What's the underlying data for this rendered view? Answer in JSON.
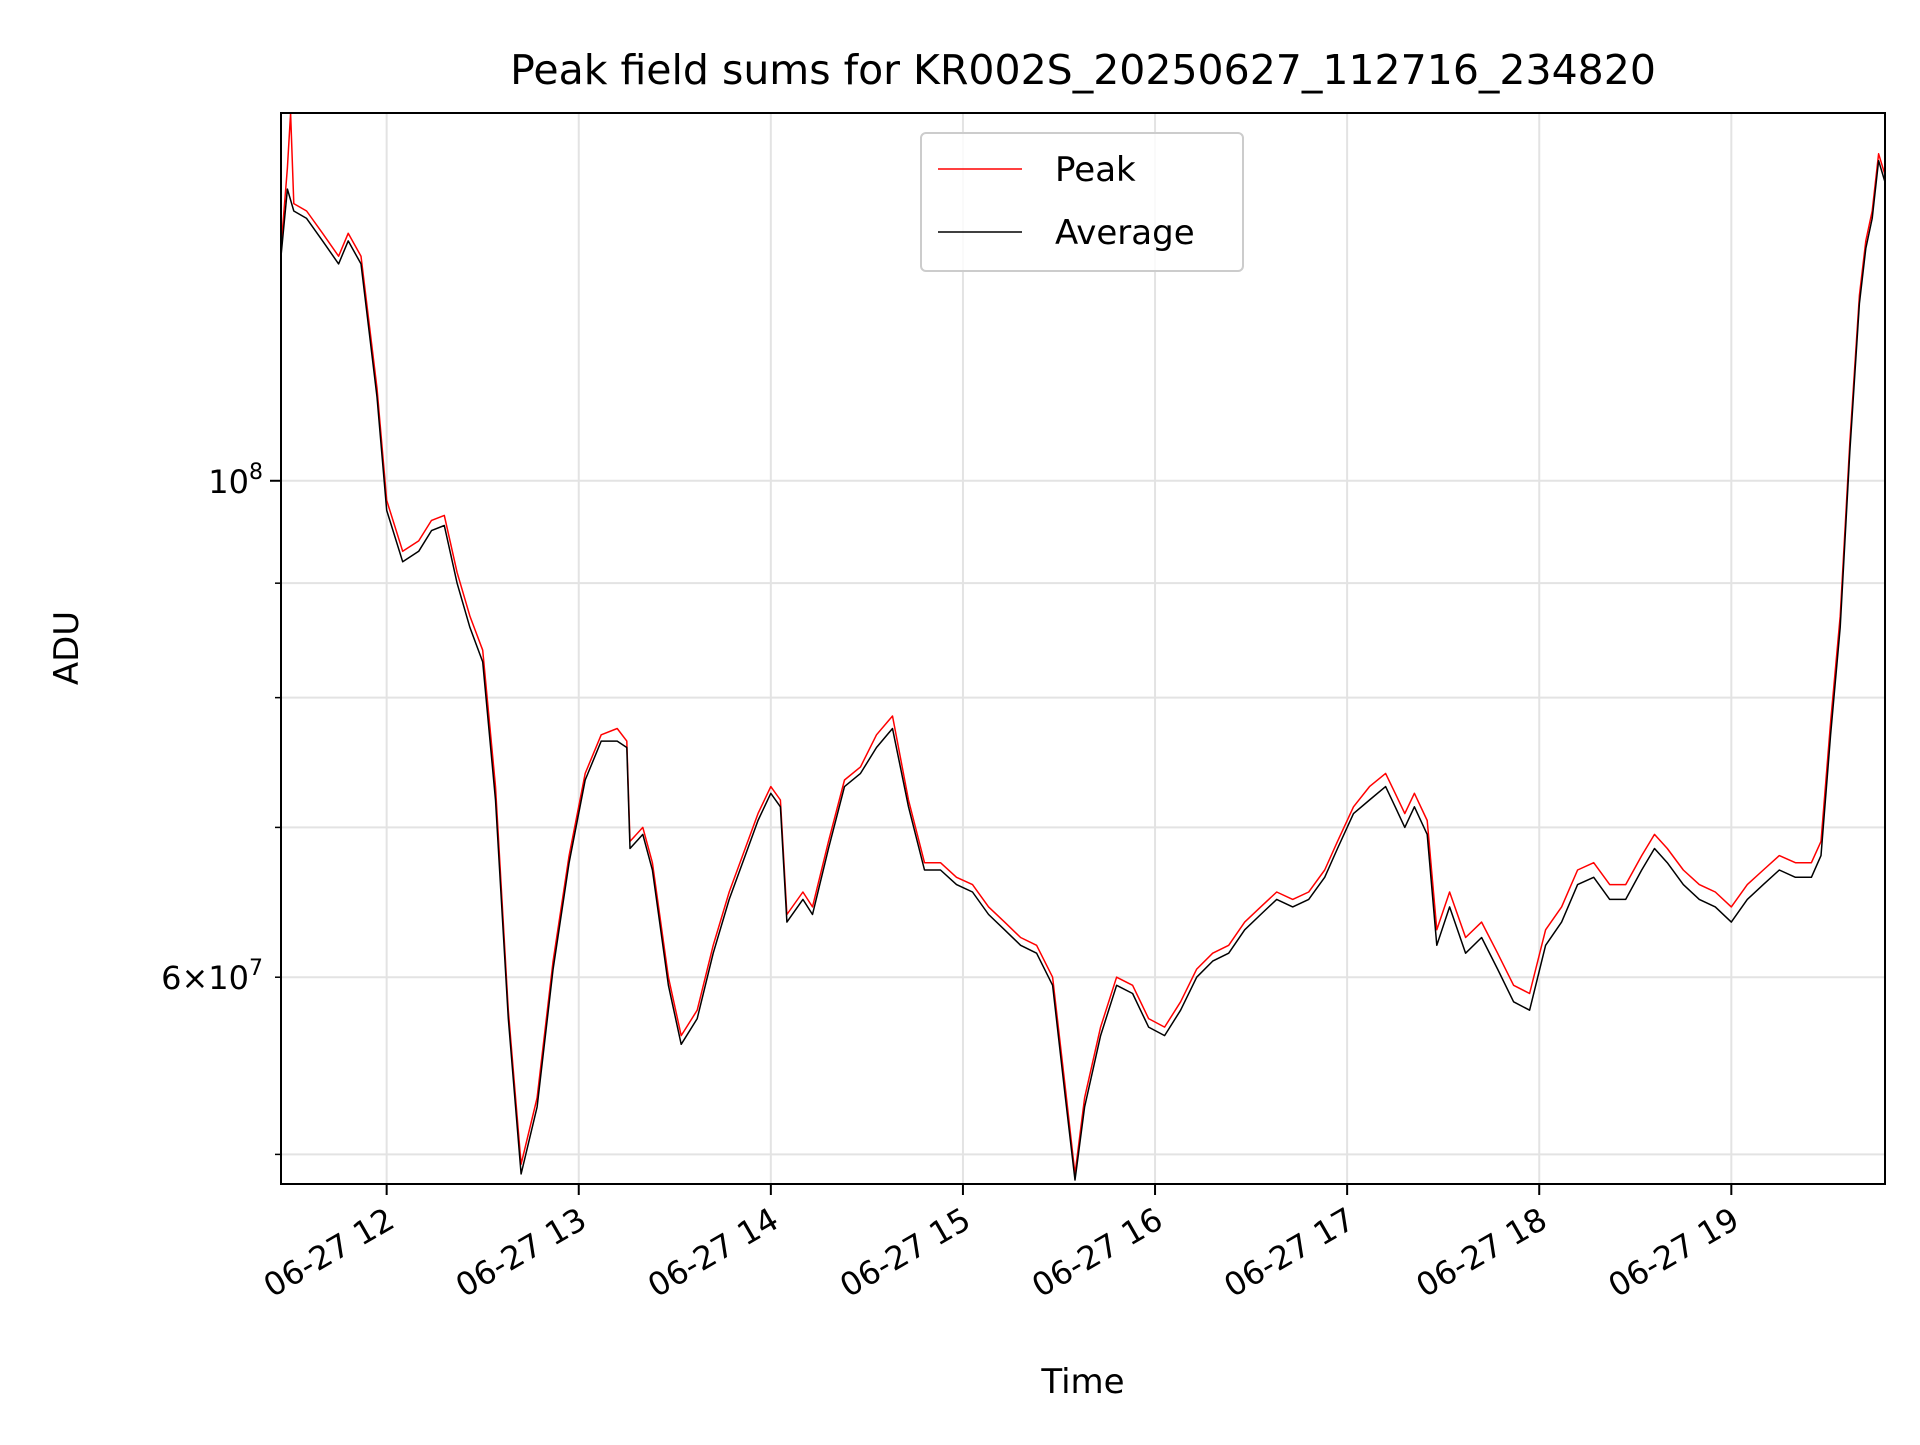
{
  "chart_data": {
    "type": "line",
    "title": "Peak field sums for KR002S_20250627_112716_234820",
    "xlabel": "Time",
    "ylabel": "ADU",
    "x_axis": {
      "kind": "time",
      "range": [
        "2025-06-27 11:27",
        "2025-06-27 19:48"
      ],
      "ticks": [
        "2025-06-27 12:00",
        "2025-06-27 13:00",
        "2025-06-27 14:00",
        "2025-06-27 15:00",
        "2025-06-27 16:00",
        "2025-06-27 17:00",
        "2025-06-27 18:00",
        "2025-06-27 19:00"
      ],
      "tick_labels": [
        "06-27 12",
        "06-27 13",
        "06-27 14",
        "06-27 15",
        "06-27 16",
        "06-27 17",
        "06-27 18",
        "06-27 19"
      ],
      "tick_label_rotation": 30
    },
    "y_axis": {
      "scale": "log",
      "range": [
        48500000,
        146000000
      ],
      "major_ticks": [
        100000000
      ],
      "major_tick_labels": [
        "10^8"
      ],
      "minor_ticks": [
        50000000,
        60000000,
        70000000,
        80000000,
        90000000
      ],
      "minor_tick_labels": [
        "",
        "6×10^7",
        "",
        "",
        ""
      ]
    },
    "grid": true,
    "legend": {
      "position": "top-center",
      "entries": [
        "Peak",
        "Average"
      ]
    },
    "series": [
      {
        "name": "Peak",
        "color": "#ff0000",
        "points": [
          [
            "2025-06-27 11:27",
            127000000
          ],
          [
            "2025-06-27 11:29",
            138000000
          ],
          [
            "2025-06-27 11:30",
            146000000
          ],
          [
            "2025-06-27 11:31",
            133000000
          ],
          [
            "2025-06-27 11:35",
            132000000
          ],
          [
            "2025-06-27 11:40",
            129000000
          ],
          [
            "2025-06-27 11:45",
            126000000
          ],
          [
            "2025-06-27 11:48",
            129000000
          ],
          [
            "2025-06-27 11:52",
            126000000
          ],
          [
            "2025-06-27 11:57",
            110000000
          ],
          [
            "2025-06-27 12:00",
            98000000
          ],
          [
            "2025-06-27 12:05",
            93000000
          ],
          [
            "2025-06-27 12:10",
            94000000
          ],
          [
            "2025-06-27 12:14",
            96000000
          ],
          [
            "2025-06-27 12:18",
            96500000
          ],
          [
            "2025-06-27 12:22",
            91000000
          ],
          [
            "2025-06-27 12:26",
            87000000
          ],
          [
            "2025-06-27 12:30",
            84000000
          ],
          [
            "2025-06-27 12:34",
            73000000
          ],
          [
            "2025-06-27 12:38",
            58000000
          ],
          [
            "2025-06-27 12:42",
            49500000
          ],
          [
            "2025-06-27 12:47",
            53000000
          ],
          [
            "2025-06-27 12:52",
            61000000
          ],
          [
            "2025-06-27 12:57",
            68000000
          ],
          [
            "2025-06-27 13:02",
            74000000
          ],
          [
            "2025-06-27 13:07",
            77000000
          ],
          [
            "2025-06-27 13:12",
            77500000
          ],
          [
            "2025-06-27 13:15",
            76500000
          ],
          [
            "2025-06-27 13:16",
            69000000
          ],
          [
            "2025-06-27 13:20",
            70000000
          ],
          [
            "2025-06-27 13:23",
            67500000
          ],
          [
            "2025-06-27 13:28",
            60000000
          ],
          [
            "2025-06-27 13:32",
            56500000
          ],
          [
            "2025-06-27 13:37",
            58000000
          ],
          [
            "2025-06-27 13:42",
            62000000
          ],
          [
            "2025-06-27 13:47",
            65500000
          ],
          [
            "2025-06-27 13:52",
            68500000
          ],
          [
            "2025-06-27 13:56",
            71000000
          ],
          [
            "2025-06-27 14:00",
            73000000
          ],
          [
            "2025-06-27 14:03",
            72000000
          ],
          [
            "2025-06-27 14:05",
            64000000
          ],
          [
            "2025-06-27 14:10",
            65500000
          ],
          [
            "2025-06-27 14:13",
            64500000
          ],
          [
            "2025-06-27 14:18",
            69000000
          ],
          [
            "2025-06-27 14:23",
            73500000
          ],
          [
            "2025-06-27 14:28",
            74500000
          ],
          [
            "2025-06-27 14:33",
            77000000
          ],
          [
            "2025-06-27 14:38",
            78500000
          ],
          [
            "2025-06-27 14:43",
            72000000
          ],
          [
            "2025-06-27 14:48",
            67500000
          ],
          [
            "2025-06-27 14:53",
            67500000
          ],
          [
            "2025-06-27 14:58",
            66500000
          ],
          [
            "2025-06-27 15:03",
            66000000
          ],
          [
            "2025-06-27 15:08",
            64500000
          ],
          [
            "2025-06-27 15:13",
            63500000
          ],
          [
            "2025-06-27 15:18",
            62500000
          ],
          [
            "2025-06-27 15:23",
            62000000
          ],
          [
            "2025-06-27 15:28",
            60000000
          ],
          [
            "2025-06-27 15:32",
            53500000
          ],
          [
            "2025-06-27 15:35",
            49000000
          ],
          [
            "2025-06-27 15:38",
            53000000
          ],
          [
            "2025-06-27 15:43",
            57000000
          ],
          [
            "2025-06-27 15:48",
            60000000
          ],
          [
            "2025-06-27 15:53",
            59500000
          ],
          [
            "2025-06-27 15:58",
            57500000
          ],
          [
            "2025-06-27 16:03",
            57000000
          ],
          [
            "2025-06-27 16:08",
            58500000
          ],
          [
            "2025-06-27 16:13",
            60500000
          ],
          [
            "2025-06-27 16:18",
            61500000
          ],
          [
            "2025-06-27 16:23",
            62000000
          ],
          [
            "2025-06-27 16:28",
            63500000
          ],
          [
            "2025-06-27 16:33",
            64500000
          ],
          [
            "2025-06-27 16:38",
            65500000
          ],
          [
            "2025-06-27 16:43",
            65000000
          ],
          [
            "2025-06-27 16:48",
            65500000
          ],
          [
            "2025-06-27 16:53",
            67000000
          ],
          [
            "2025-06-27 16:57",
            69000000
          ],
          [
            "2025-06-27 17:02",
            71500000
          ],
          [
            "2025-06-27 17:07",
            73000000
          ],
          [
            "2025-06-27 17:12",
            74000000
          ],
          [
            "2025-06-27 17:15",
            72500000
          ],
          [
            "2025-06-27 17:18",
            71000000
          ],
          [
            "2025-06-27 17:21",
            72500000
          ],
          [
            "2025-06-27 17:25",
            70500000
          ],
          [
            "2025-06-27 17:28",
            63000000
          ],
          [
            "2025-06-27 17:32",
            65500000
          ],
          [
            "2025-06-27 17:37",
            62500000
          ],
          [
            "2025-06-27 17:42",
            63500000
          ],
          [
            "2025-06-27 17:47",
            61500000
          ],
          [
            "2025-06-27 17:52",
            59500000
          ],
          [
            "2025-06-27 17:57",
            59000000
          ],
          [
            "2025-06-27 18:02",
            63000000
          ],
          [
            "2025-06-27 18:07",
            64500000
          ],
          [
            "2025-06-27 18:12",
            67000000
          ],
          [
            "2025-06-27 18:17",
            67500000
          ],
          [
            "2025-06-27 18:22",
            66000000
          ],
          [
            "2025-06-27 18:27",
            66000000
          ],
          [
            "2025-06-27 18:32",
            68000000
          ],
          [
            "2025-06-27 18:36",
            69500000
          ],
          [
            "2025-06-27 18:40",
            68500000
          ],
          [
            "2025-06-27 18:45",
            67000000
          ],
          [
            "2025-06-27 18:50",
            66000000
          ],
          [
            "2025-06-27 18:55",
            65500000
          ],
          [
            "2025-06-27 19:00",
            64500000
          ],
          [
            "2025-06-27 19:05",
            66000000
          ],
          [
            "2025-06-27 19:10",
            67000000
          ],
          [
            "2025-06-27 19:15",
            68000000
          ],
          [
            "2025-06-27 19:20",
            67500000
          ],
          [
            "2025-06-27 19:25",
            67500000
          ],
          [
            "2025-06-27 19:28",
            69000000
          ],
          [
            "2025-06-27 19:31",
            78000000
          ],
          [
            "2025-06-27 19:34",
            87000000
          ],
          [
            "2025-06-27 19:37",
            104000000
          ],
          [
            "2025-06-27 19:40",
            121000000
          ],
          [
            "2025-06-27 19:42",
            128000000
          ],
          [
            "2025-06-27 19:44",
            132000000
          ],
          [
            "2025-06-27 19:46",
            140000000
          ],
          [
            "2025-06-27 19:48",
            137000000
          ]
        ]
      },
      {
        "name": "Average",
        "color": "#000000",
        "points": [
          [
            "2025-06-27 11:27",
            126000000
          ],
          [
            "2025-06-27 11:29",
            135000000
          ],
          [
            "2025-06-27 11:31",
            132000000
          ],
          [
            "2025-06-27 11:35",
            131000000
          ],
          [
            "2025-06-27 11:40",
            128000000
          ],
          [
            "2025-06-27 11:45",
            125000000
          ],
          [
            "2025-06-27 11:48",
            128000000
          ],
          [
            "2025-06-27 11:52",
            125000000
          ],
          [
            "2025-06-27 11:57",
            109000000
          ],
          [
            "2025-06-27 12:00",
            97000000
          ],
          [
            "2025-06-27 12:05",
            92000000
          ],
          [
            "2025-06-27 12:10",
            93000000
          ],
          [
            "2025-06-27 12:14",
            95000000
          ],
          [
            "2025-06-27 12:18",
            95500000
          ],
          [
            "2025-06-27 12:22",
            90000000
          ],
          [
            "2025-06-27 12:26",
            86000000
          ],
          [
            "2025-06-27 12:30",
            83000000
          ],
          [
            "2025-06-27 12:34",
            72000000
          ],
          [
            "2025-06-27 12:38",
            57500000
          ],
          [
            "2025-06-27 12:42",
            49000000
          ],
          [
            "2025-06-27 12:47",
            52500000
          ],
          [
            "2025-06-27 12:52",
            60500000
          ],
          [
            "2025-06-27 12:57",
            67500000
          ],
          [
            "2025-06-27 13:02",
            73500000
          ],
          [
            "2025-06-27 13:07",
            76500000
          ],
          [
            "2025-06-27 13:12",
            76500000
          ],
          [
            "2025-06-27 13:15",
            76000000
          ],
          [
            "2025-06-27 13:16",
            68500000
          ],
          [
            "2025-06-27 13:20",
            69500000
          ],
          [
            "2025-06-27 13:23",
            67000000
          ],
          [
            "2025-06-27 13:28",
            59500000
          ],
          [
            "2025-06-27 13:32",
            56000000
          ],
          [
            "2025-06-27 13:37",
            57500000
          ],
          [
            "2025-06-27 13:42",
            61500000
          ],
          [
            "2025-06-27 13:47",
            65000000
          ],
          [
            "2025-06-27 13:52",
            68000000
          ],
          [
            "2025-06-27 13:56",
            70500000
          ],
          [
            "2025-06-27 14:00",
            72500000
          ],
          [
            "2025-06-27 14:03",
            71500000
          ],
          [
            "2025-06-27 14:05",
            63500000
          ],
          [
            "2025-06-27 14:10",
            65000000
          ],
          [
            "2025-06-27 14:13",
            64000000
          ],
          [
            "2025-06-27 14:18",
            68500000
          ],
          [
            "2025-06-27 14:23",
            73000000
          ],
          [
            "2025-06-27 14:28",
            74000000
          ],
          [
            "2025-06-27 14:33",
            76000000
          ],
          [
            "2025-06-27 14:38",
            77500000
          ],
          [
            "2025-06-27 14:43",
            71500000
          ],
          [
            "2025-06-27 14:48",
            67000000
          ],
          [
            "2025-06-27 14:53",
            67000000
          ],
          [
            "2025-06-27 14:58",
            66000000
          ],
          [
            "2025-06-27 15:03",
            65500000
          ],
          [
            "2025-06-27 15:08",
            64000000
          ],
          [
            "2025-06-27 15:13",
            63000000
          ],
          [
            "2025-06-27 15:18",
            62000000
          ],
          [
            "2025-06-27 15:23",
            61500000
          ],
          [
            "2025-06-27 15:28",
            59500000
          ],
          [
            "2025-06-27 15:32",
            53000000
          ],
          [
            "2025-06-27 15:35",
            48700000
          ],
          [
            "2025-06-27 15:38",
            52500000
          ],
          [
            "2025-06-27 15:43",
            56500000
          ],
          [
            "2025-06-27 15:48",
            59500000
          ],
          [
            "2025-06-27 15:53",
            59000000
          ],
          [
            "2025-06-27 15:58",
            57000000
          ],
          [
            "2025-06-27 16:03",
            56500000
          ],
          [
            "2025-06-27 16:08",
            58000000
          ],
          [
            "2025-06-27 16:13",
            60000000
          ],
          [
            "2025-06-27 16:18",
            61000000
          ],
          [
            "2025-06-27 16:23",
            61500000
          ],
          [
            "2025-06-27 16:28",
            63000000
          ],
          [
            "2025-06-27 16:33",
            64000000
          ],
          [
            "2025-06-27 16:38",
            65000000
          ],
          [
            "2025-06-27 16:43",
            64500000
          ],
          [
            "2025-06-27 16:48",
            65000000
          ],
          [
            "2025-06-27 16:53",
            66500000
          ],
          [
            "2025-06-27 16:57",
            68500000
          ],
          [
            "2025-06-27 17:02",
            71000000
          ],
          [
            "2025-06-27 17:07",
            72000000
          ],
          [
            "2025-06-27 17:12",
            73000000
          ],
          [
            "2025-06-27 17:15",
            71500000
          ],
          [
            "2025-06-27 17:18",
            70000000
          ],
          [
            "2025-06-27 17:21",
            71500000
          ],
          [
            "2025-06-27 17:25",
            69500000
          ],
          [
            "2025-06-27 17:28",
            62000000
          ],
          [
            "2025-06-27 17:32",
            64500000
          ],
          [
            "2025-06-27 17:37",
            61500000
          ],
          [
            "2025-06-27 17:42",
            62500000
          ],
          [
            "2025-06-27 17:47",
            60500000
          ],
          [
            "2025-06-27 17:52",
            58500000
          ],
          [
            "2025-06-27 17:57",
            58000000
          ],
          [
            "2025-06-27 18:02",
            62000000
          ],
          [
            "2025-06-27 18:07",
            63500000
          ],
          [
            "2025-06-27 18:12",
            66000000
          ],
          [
            "2025-06-27 18:17",
            66500000
          ],
          [
            "2025-06-27 18:22",
            65000000
          ],
          [
            "2025-06-27 18:27",
            65000000
          ],
          [
            "2025-06-27 18:32",
            67000000
          ],
          [
            "2025-06-27 18:36",
            68500000
          ],
          [
            "2025-06-27 18:40",
            67500000
          ],
          [
            "2025-06-27 18:45",
            66000000
          ],
          [
            "2025-06-27 18:50",
            65000000
          ],
          [
            "2025-06-27 18:55",
            64500000
          ],
          [
            "2025-06-27 19:00",
            63500000
          ],
          [
            "2025-06-27 19:05",
            65000000
          ],
          [
            "2025-06-27 19:10",
            66000000
          ],
          [
            "2025-06-27 19:15",
            67000000
          ],
          [
            "2025-06-27 19:20",
            66500000
          ],
          [
            "2025-06-27 19:25",
            66500000
          ],
          [
            "2025-06-27 19:28",
            68000000
          ],
          [
            "2025-06-27 19:31",
            77000000
          ],
          [
            "2025-06-27 19:34",
            86000000
          ],
          [
            "2025-06-27 19:37",
            103000000
          ],
          [
            "2025-06-27 19:40",
            120000000
          ],
          [
            "2025-06-27 19:42",
            127000000
          ],
          [
            "2025-06-27 19:44",
            131000000
          ],
          [
            "2025-06-27 19:46",
            139000000
          ],
          [
            "2025-06-27 19:48",
            136000000
          ]
        ]
      }
    ]
  }
}
